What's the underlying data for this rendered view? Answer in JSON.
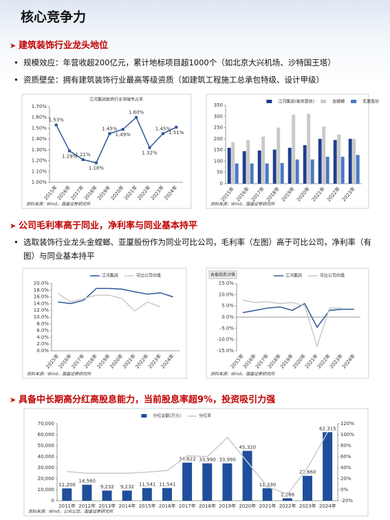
{
  "header": {
    "title": "核心竞争力"
  },
  "sections": [
    {
      "heading": "建筑装饰行业龙头地位",
      "bullets": [
        "规模效应：年营收超200亿元，累计地标项目超1000个（如北京大兴机场、沙特国王塔）",
        "资质壁垒：拥有建筑装饰行业最高等级资质（如建筑工程施工总承包特级、设计甲级）"
      ]
    },
    {
      "heading": "公司毛利率高于同业，净利率与同业基本持平",
      "bullets": [
        "选取装饰行业龙头金螳螂、亚厦股份作为同业可比公司，毛利率（左图）高于可比公司，净利率（有图）与同业基本持平"
      ]
    },
    {
      "heading": "具备中长期高分红高股息能力，当前股息率超9%，投资吸引力强",
      "bullets": []
    }
  ],
  "chart_data": [
    {
      "type": "line",
      "title": "江河集团装饰行业领域市占率",
      "source": "资料来源：Wind，国盛证券研究所",
      "categories": [
        "2015年",
        "2016年",
        "2017年",
        "2018年",
        "2019年",
        "2020年",
        "2021年",
        "2022年",
        "2023年",
        "2024年"
      ],
      "values": [
        1.53,
        1.29,
        1.21,
        1.18,
        1.45,
        1.49,
        1.6,
        1.32,
        1.45,
        1.51
      ],
      "value_labels": [
        "1.53%",
        "1.29%",
        "1.21%",
        "1.18%",
        "1.45%",
        "1.49%",
        "1.60%",
        "1.32%",
        "1.45%",
        "1.51%"
      ],
      "color": "#2f5597",
      "ylim": [
        1.0,
        1.7
      ],
      "yticks": [
        {
          "value": 1.0,
          "label": "1.00%"
        },
        {
          "value": 1.1,
          "label": "1.10%"
        },
        {
          "value": 1.2,
          "label": "1.20%"
        },
        {
          "value": 1.3,
          "label": "1.30%"
        },
        {
          "value": 1.4,
          "label": "1.40%"
        },
        {
          "value": 1.5,
          "label": "1.50%"
        },
        {
          "value": 1.6,
          "label": "1.60%"
        },
        {
          "value": 1.7,
          "label": "1.70%"
        }
      ]
    },
    {
      "type": "bar",
      "source": "资料来源：Wind，国盛证券研究所",
      "categories": [
        "2015年",
        "2016年",
        "2017年",
        "2018年",
        "2019年",
        "2020年",
        "2021年",
        "2022年",
        "2023年"
      ],
      "series": [
        {
          "name": "江河集团(装饰营收)",
          "color": "#1f3f8f",
          "values": [
            160,
            145,
            148,
            152,
            160,
            172,
            200,
            195,
            200
          ]
        },
        {
          "name": "金螳螂",
          "color": "#c9c9c9",
          "values": [
            185,
            195,
            210,
            250,
            308,
            312,
            255,
            220,
            200
          ]
        },
        {
          "name": "亚厦股份",
          "color": "#4a78c2",
          "values": [
            90,
            90,
            90,
            92,
            108,
            108,
            120,
            120,
            128
          ]
        }
      ],
      "ylim": [
        0,
        350
      ],
      "yticks": [
        0,
        50,
        100,
        150,
        200,
        250,
        300,
        350
      ]
    },
    {
      "type": "line",
      "source": "资料来源：Wind，国盛证券研究所",
      "categories": [
        "2015年",
        "2016年",
        "2017年",
        "2018年",
        "2019年",
        "2020年",
        "2021年",
        "2022年",
        "2023年",
        "2024年"
      ],
      "series": [
        {
          "name": "江河集团",
          "color": "#2f5597",
          "values": [
            14.5,
            14,
            15,
            18.5,
            18.5,
            18.3,
            17.5,
            16.8,
            17.2,
            16
          ]
        },
        {
          "name": "可比公司均值",
          "color": "#c9c9c9",
          "values": [
            17,
            14.5,
            15.5,
            16.5,
            16.5,
            15.5,
            11.8,
            14.5,
            13,
            null
          ]
        }
      ],
      "ylim": [
        0,
        20
      ],
      "yticks": [
        {
          "value": 0,
          "label": "0.0%"
        },
        {
          "value": 2,
          "label": "2.0%"
        },
        {
          "value": 4,
          "label": "4.0%"
        },
        {
          "value": 6,
          "label": "6.0%"
        },
        {
          "value": 8,
          "label": "8.0%"
        },
        {
          "value": 10,
          "label": "10.0%"
        },
        {
          "value": 12,
          "label": "12.0%"
        },
        {
          "value": 14,
          "label": "14.0%"
        },
        {
          "value": 16,
          "label": "16.0%"
        },
        {
          "value": 18,
          "label": "18.0%"
        },
        {
          "value": 20,
          "label": "20.0%"
        }
      ]
    },
    {
      "type": "line",
      "note": "查看图表详情",
      "source": "资料来源：Wind，国盛证券研究所",
      "categories": [
        "2015年",
        "2016年",
        "2017年",
        "2018年",
        "2019年",
        "2020年",
        "2021年",
        "2022年",
        "2023年",
        "2024年"
      ],
      "series": [
        {
          "name": "江河集团",
          "color": "#2f5597",
          "values": [
            2,
            3,
            4,
            4.5,
            3,
            6,
            -4.5,
            3,
            3.5,
            3.5
          ]
        },
        {
          "name": "可比公司均值",
          "color": "#c9c9c9",
          "values": [
            7.5,
            6.5,
            6.8,
            6,
            6.5,
            5,
            -13,
            4,
            4,
            null
          ]
        }
      ],
      "ylim": [
        -15,
        15
      ],
      "yticks": [
        {
          "value": -15,
          "label": "-15.0%"
        },
        {
          "value": -10,
          "label": "-10.0%"
        },
        {
          "value": -5,
          "label": "-5.0%"
        },
        {
          "value": 0,
          "label": "0.0%"
        },
        {
          "value": 5,
          "label": "5.0%"
        },
        {
          "value": 10,
          "label": "10.0%"
        },
        {
          "value": 15,
          "label": "15.0%"
        }
      ]
    },
    {
      "type": "combo",
      "source": "资料来源：Wind，公司公告，国盛证券研究所",
      "categories": [
        "2011年",
        "2012年",
        "2013年",
        "2014年",
        "2015年",
        "2016年",
        "2017年",
        "2018年",
        "2019年",
        "2020年",
        "2021年",
        "2022年",
        "2023年",
        "2024年"
      ],
      "series": [
        {
          "name": "分红总额(万元)",
          "type": "bar",
          "color": "#1f4e9c",
          "values": [
            11200,
            14560,
            9232,
            9232,
            11541,
            11541,
            34622,
            33990,
            33990,
            45320,
            11330,
            2266,
            22660,
            62315
          ],
          "value_labels": [
            "11,200",
            "14,560",
            "9,232",
            "9,232",
            "11,541",
            "11,541",
            "34,622",
            "33,990",
            "33,990",
            "45,320",
            "11,330",
            "2,266",
            "22,660",
            "62,315"
          ]
        },
        {
          "name": "分红率",
          "type": "line",
          "axis": "y2",
          "color": "#c9c9c9",
          "values": [
            33,
            30,
            30,
            30,
            32,
            35,
            62,
            60,
            95,
            50,
            5,
            -8,
            40,
            105
          ]
        }
      ],
      "ylim": [
        0,
        70000
      ],
      "yticks": [
        0,
        {
          "value": 10000,
          "label": "10,000"
        },
        {
          "value": 20000,
          "label": "20,000"
        },
        {
          "value": 30000,
          "label": "30,000"
        },
        {
          "value": 40000,
          "label": "40,000"
        },
        {
          "value": 50000,
          "label": "50,000"
        },
        {
          "value": 60000,
          "label": "60,000"
        },
        {
          "value": 70000,
          "label": "70,000"
        }
      ],
      "y2lim": [
        -20,
        120
      ],
      "y2ticks": [
        {
          "value": -20,
          "label": "-20%"
        },
        {
          "value": 0,
          "label": "0%"
        },
        {
          "value": 20,
          "label": "20%"
        },
        {
          "value": 40,
          "label": "40%"
        },
        {
          "value": 60,
          "label": "60%"
        },
        {
          "value": 80,
          "label": "80%"
        },
        {
          "value": 100,
          "label": "100%"
        },
        {
          "value": 120,
          "label": "120%"
        }
      ]
    }
  ]
}
